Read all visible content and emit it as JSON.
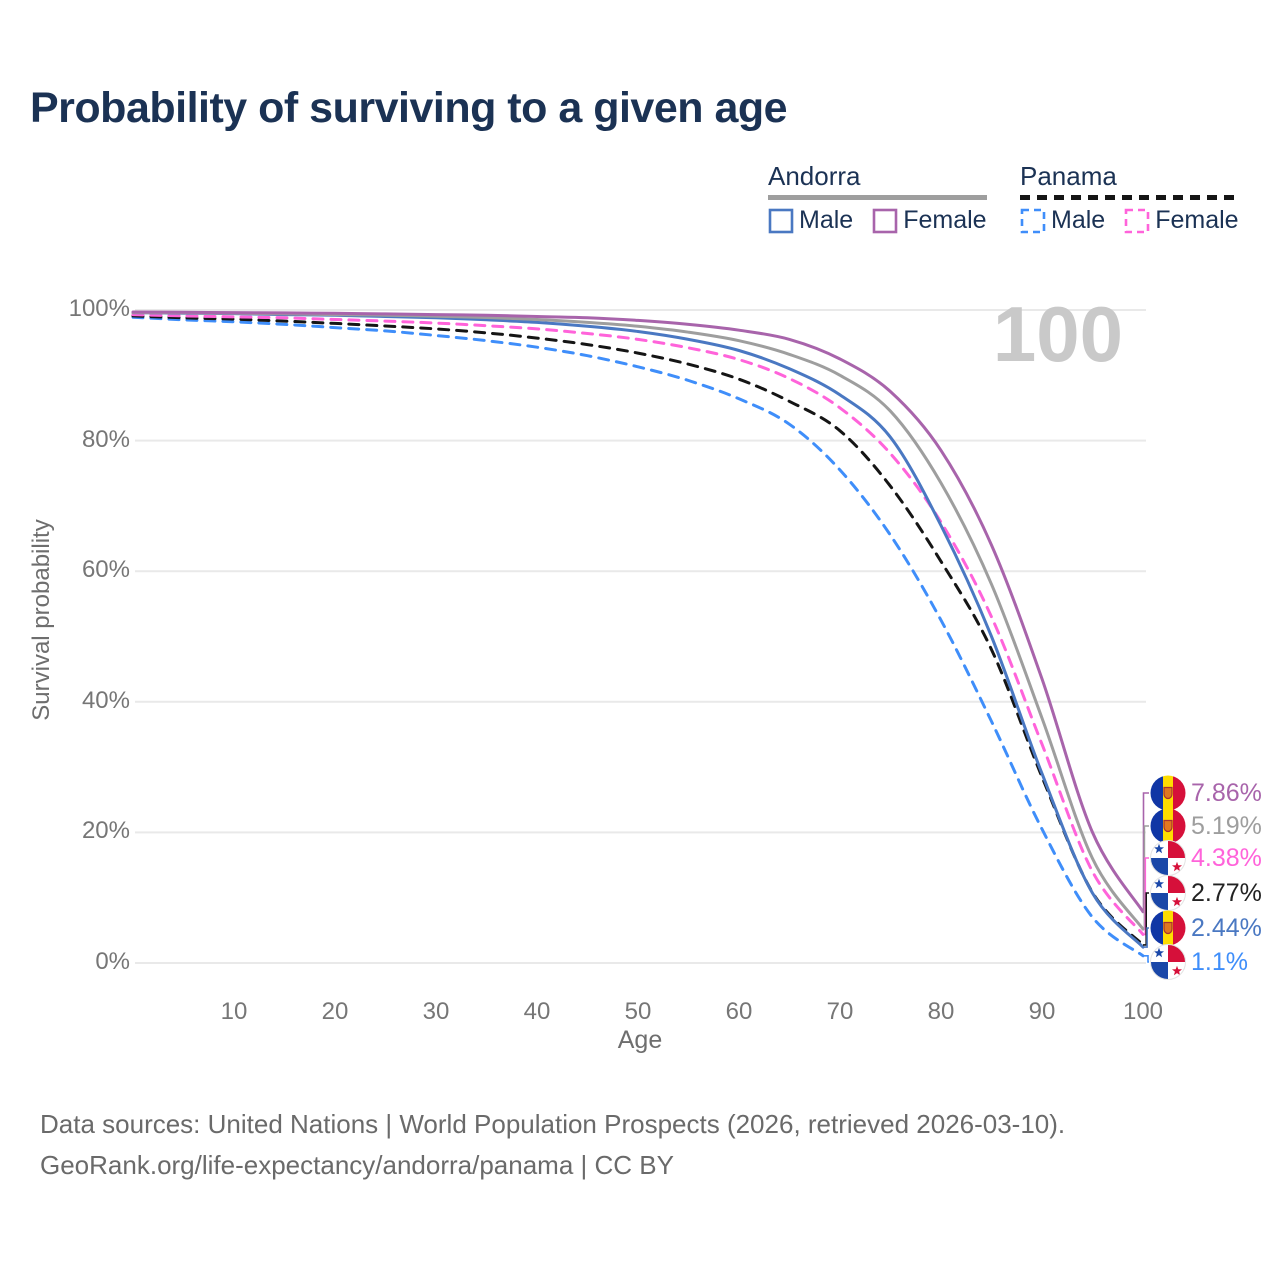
{
  "title": "Probability of surviving to a given age",
  "watermark": "100",
  "legend": {
    "groups": [
      {
        "id": "andorra",
        "title": "Andorra",
        "line_style": "solid",
        "line_color": "#9e9e9e",
        "items": [
          {
            "label": "Male",
            "color": "#4a78c2",
            "line_style": "solid"
          },
          {
            "label": "Female",
            "color": "#a864ab",
            "line_style": "solid"
          }
        ]
      },
      {
        "id": "panama",
        "title": "Panama",
        "line_style": "dashed",
        "line_color": "#151515",
        "items": [
          {
            "label": "Male",
            "color": "#3f8efa",
            "line_style": "dashed"
          },
          {
            "label": "Female",
            "color": "#ff63da",
            "line_style": "dashed"
          }
        ]
      }
    ]
  },
  "chart_data": {
    "type": "line",
    "title": "Probability of surviving to a given age",
    "x_label": "Age",
    "y_label": "Survival probability",
    "xlim": [
      0,
      100
    ],
    "ylim": [
      0,
      100
    ],
    "grid": "horizontal",
    "x_ticks": [
      "10",
      "20",
      "30",
      "40",
      "50",
      "60",
      "70",
      "80",
      "90",
      "100"
    ],
    "y_ticks": [
      "0%",
      "20%",
      "40%",
      "60%",
      "80%",
      "100%"
    ],
    "hover_age": "100",
    "x": [
      0,
      5,
      10,
      15,
      20,
      25,
      30,
      35,
      40,
      45,
      50,
      55,
      60,
      65,
      70,
      75,
      80,
      85,
      90,
      95,
      100
    ],
    "series": [
      {
        "name": "Panama Male",
        "country": "panama",
        "sex": "male",
        "line": "dashed",
        "color": "#3f8efa",
        "values": [
          98.9,
          98.5,
          98.2,
          97.8,
          97.3,
          96.8,
          96.1,
          95.3,
          94.3,
          93.0,
          91.3,
          89.2,
          86.4,
          82.5,
          75.5,
          65.5,
          52.5,
          37.0,
          20.5,
          7.0,
          1.1
        ]
      },
      {
        "name": "Panama",
        "country": "panama",
        "sex": "both",
        "line": "dashed",
        "color": "#151515",
        "values": [
          99.1,
          98.8,
          98.6,
          98.3,
          97.95,
          97.55,
          97.1,
          96.5,
          95.7,
          94.7,
          93.4,
          91.7,
          89.4,
          86.0,
          81.5,
          73.0,
          61.5,
          48.0,
          28.5,
          10.8,
          2.77
        ]
      },
      {
        "name": "Panama Female",
        "country": "panama",
        "sex": "female",
        "line": "dashed",
        "color": "#ff63da",
        "values": [
          99.3,
          99.1,
          98.95,
          98.8,
          98.55,
          98.3,
          98.0,
          97.6,
          97.1,
          96.4,
          95.5,
          94.2,
          92.4,
          89.5,
          85.0,
          78.0,
          67.5,
          53.0,
          33.5,
          14.0,
          4.38
        ]
      },
      {
        "name": "Andorra Male",
        "country": "andorra",
        "sex": "male",
        "line": "solid",
        "color": "#4a78c2",
        "values": [
          99.6,
          99.5,
          99.45,
          99.3,
          99.2,
          99.0,
          98.8,
          98.5,
          98.1,
          97.5,
          96.7,
          95.5,
          93.8,
          91.0,
          87.0,
          80.5,
          67.0,
          50.0,
          29.0,
          10.7,
          2.44
        ]
      },
      {
        "name": "Andorra",
        "country": "andorra",
        "sex": "both",
        "line": "solid",
        "color": "#9e9e9e",
        "values": [
          99.6,
          99.55,
          99.5,
          99.4,
          99.3,
          99.2,
          99.05,
          98.85,
          98.55,
          98.1,
          97.5,
          96.6,
          95.3,
          93.2,
          90.0,
          84.5,
          73.5,
          58.0,
          37.5,
          16.0,
          5.19
        ]
      },
      {
        "name": "Andorra Female",
        "country": "andorra",
        "sex": "female",
        "line": "solid",
        "color": "#a864ab",
        "values": [
          99.7,
          99.65,
          99.6,
          99.55,
          99.5,
          99.4,
          99.3,
          99.2,
          99.0,
          98.8,
          98.4,
          97.8,
          96.9,
          95.5,
          92.5,
          87.5,
          78.5,
          64.0,
          43.5,
          20.0,
          7.86
        ]
      }
    ],
    "end_labels": [
      {
        "series": "Andorra Female",
        "icon": "andorra-flag",
        "label": "7.86%",
        "value": 7.86,
        "color": "#a864ab"
      },
      {
        "series": "Andorra",
        "icon": "andorra-flag",
        "label": "5.19%",
        "value": 5.19,
        "color": "#9e9e9e"
      },
      {
        "series": "Panama Female",
        "icon": "panama-flag",
        "label": "4.38%",
        "value": 4.38,
        "color": "#ff63da"
      },
      {
        "series": "Panama",
        "icon": "panama-flag",
        "label": "2.77%",
        "value": 2.77,
        "color": "#222222"
      },
      {
        "series": "Andorra Male",
        "icon": "andorra-flag",
        "label": "2.44%",
        "value": 2.44,
        "color": "#4a78c2"
      },
      {
        "series": "Panama Male",
        "icon": "panama-flag",
        "label": "1.1%",
        "value": 1.1,
        "color": "#3f8efa"
      }
    ],
    "flag_colors": {
      "andorra": {
        "blue": "#1036a5",
        "yellow": "#fedd00",
        "red": "#d6103a",
        "crest": "#e07820"
      },
      "panama": {
        "white": "#ffffff",
        "red": "#d6103a",
        "blue": "#1a47a8"
      }
    }
  },
  "footer": {
    "line1": "Data sources: United Nations | World Population Prospects (2026, retrieved 2026-03-10).",
    "line2": "GeoRank.org/life-expectancy/andorra/panama | CC BY"
  }
}
